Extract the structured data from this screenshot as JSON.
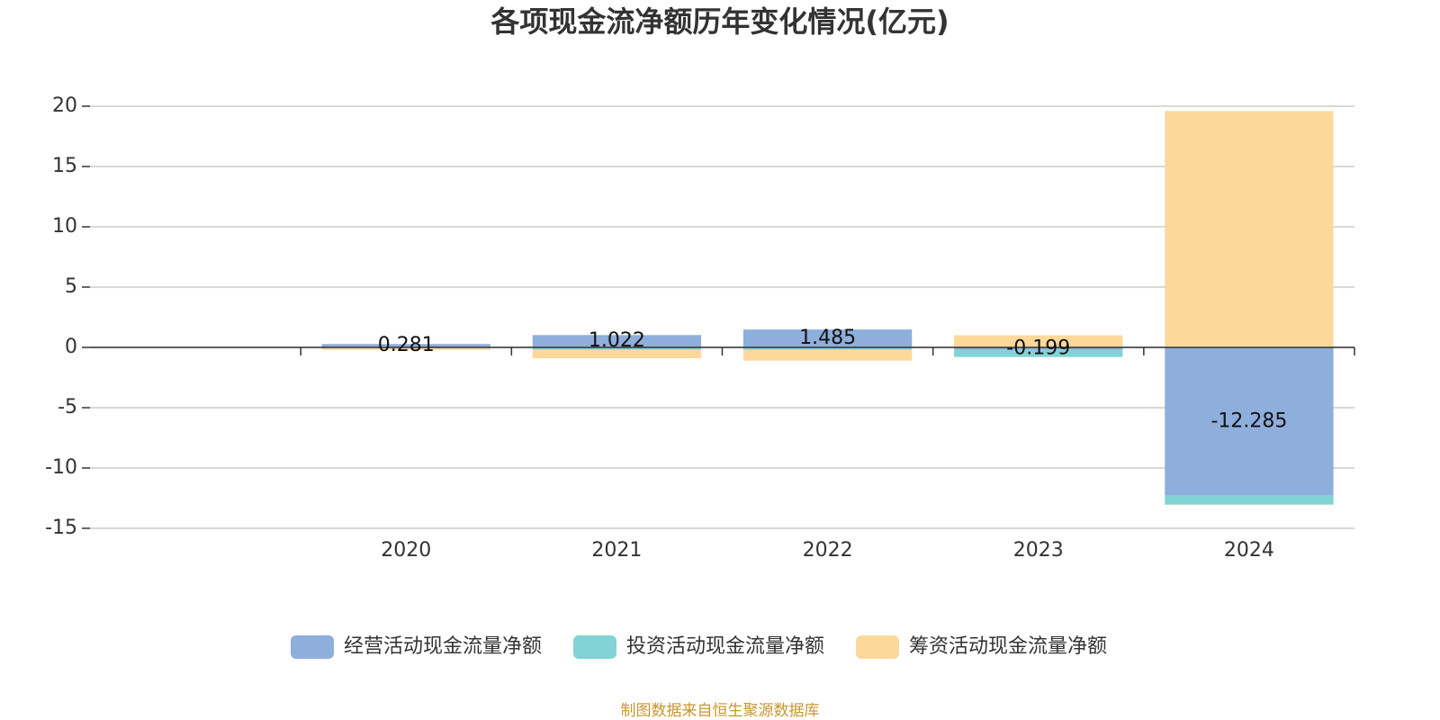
{
  "chart_data": {
    "type": "stacked-bar",
    "title": "各项现金流净额历年变化情况(亿元)",
    "source": "制图数据来自恒生聚源数据库",
    "categories": [
      null,
      "2020",
      "2021",
      "2022",
      "2023",
      "2024"
    ],
    "series": [
      {
        "name": "经营活动现金流量净额",
        "color": "#8eaedb",
        "values": [
          null,
          0.281,
          1.022,
          1.485,
          -0.199,
          -12.285
        ]
      },
      {
        "name": "投资活动现金流量净额",
        "color": "#82d3d5",
        "values": [
          null,
          -0.05,
          -0.2,
          -0.2,
          -0.6,
          -0.75
        ]
      },
      {
        "name": "筹资活动现金流量净额",
        "color": "#fdd89b",
        "values": [
          null,
          -0.15,
          -0.7,
          -0.9,
          1.0,
          19.6
        ]
      }
    ],
    "data_labels_series": 0,
    "ylim": [
      -15,
      20
    ],
    "yticks": [
      -15,
      -10,
      -5,
      0,
      5,
      10,
      15,
      20
    ],
    "grid": true
  }
}
